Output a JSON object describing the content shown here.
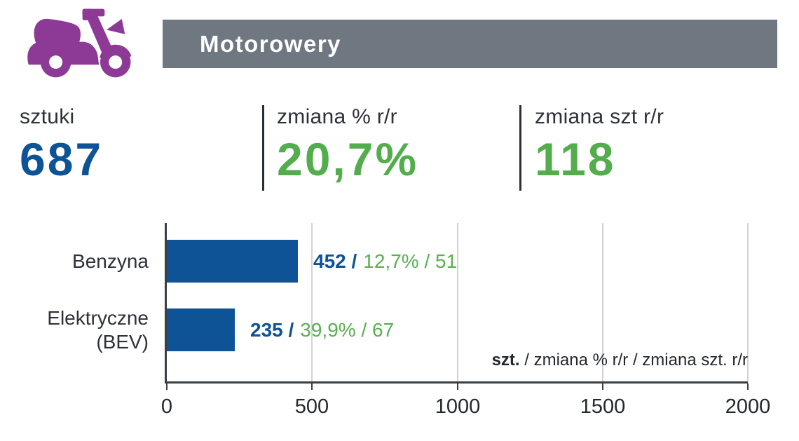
{
  "header": {
    "title": "Motorowery",
    "icon": "moped-icon",
    "icon_color": "#8d3996",
    "banner_color": "#6f7880"
  },
  "stats": [
    {
      "label": "sztuki",
      "value": "687",
      "color": "#0e5395"
    },
    {
      "label": "zmiana % r/r",
      "value": "20,7%",
      "color": "#53ad4c"
    },
    {
      "label": "zmiana szt r/r",
      "value": "118",
      "color": "#53ad4c"
    }
  ],
  "chart": {
    "xmax": 2000,
    "tick_values": [
      0,
      500,
      1000,
      1500,
      2000
    ],
    "tick_labels": [
      "0",
      "500",
      "1000",
      "1500",
      "2000"
    ],
    "rows": [
      {
        "label_lines": [
          "Benzyna"
        ],
        "value": 452,
        "value_blue": "452 /",
        "value_green": "12,7% / 51"
      },
      {
        "label_lines": [
          "Elektryczne",
          "(BEV)"
        ],
        "value": 235,
        "value_blue": "235 /",
        "value_green": "39,9% / 67"
      }
    ],
    "legend_bold": "szt.",
    "legend_rest": " / zmiana % r/r / zmiana szt. r/r",
    "bar_color": "#0e5395"
  },
  "chart_data": {
    "type": "bar",
    "orientation": "horizontal",
    "title": "Motorowery",
    "categories": [
      "Benzyna",
      "Elektryczne (BEV)"
    ],
    "series": [
      {
        "name": "szt.",
        "values": [
          452,
          235
        ]
      },
      {
        "name": "zmiana % r/r",
        "values": [
          "12,7%",
          "39,9%"
        ]
      },
      {
        "name": "zmiana szt. r/r",
        "values": [
          51,
          67
        ]
      }
    ],
    "xlabel": "",
    "ylabel": "",
    "xlim": [
      0,
      2000
    ],
    "xticks": [
      0,
      500,
      1000,
      1500,
      2000
    ],
    "grid": true,
    "legend_text": "szt. / zmiana % r/r / zmiana szt. r/r",
    "summary": {
      "sztuki": 687,
      "zmiana_pct_rr": "20,7%",
      "zmiana_szt_rr": 118
    }
  }
}
